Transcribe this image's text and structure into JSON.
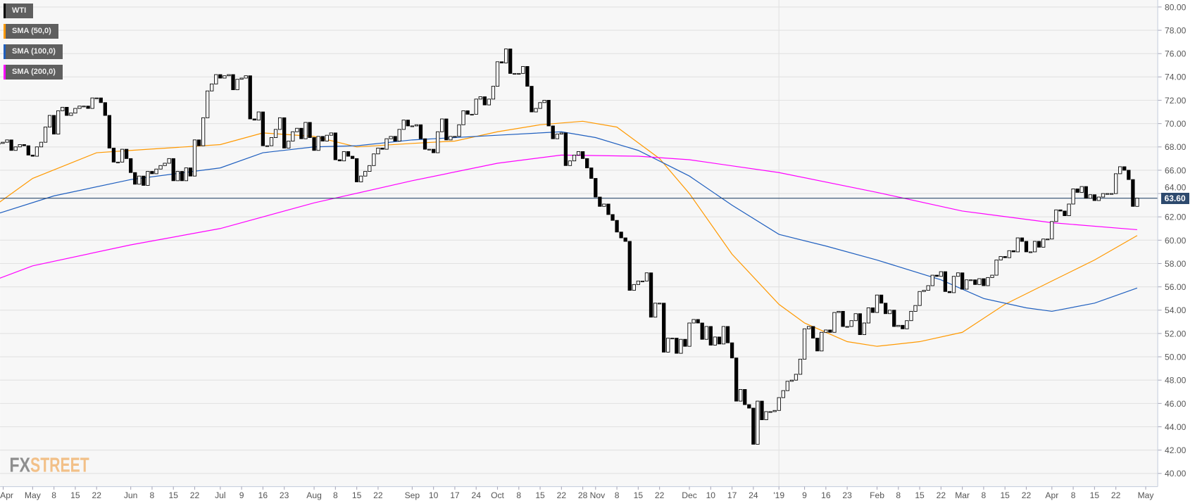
{
  "chart_data": {
    "type": "candlestick",
    "instrument": "WTI",
    "ylim": [
      40,
      80
    ],
    "y_ticks": [
      "80.00",
      "78.00",
      "76.00",
      "74.00",
      "72.00",
      "70.00",
      "68.00",
      "66.00",
      "64.00",
      "62.00",
      "60.00",
      "58.00",
      "56.00",
      "54.00",
      "52.00",
      "50.00",
      "48.00",
      "46.00",
      "44.00",
      "42.00",
      "40.00"
    ],
    "grid": true,
    "legend_placement": "top-left",
    "last_price": "63.60",
    "colors": {
      "up_body": "#ffffff",
      "down_body": "#000000",
      "sma50": "#ff9900",
      "sma100": "#1f5fbf",
      "sma200": "#ff00ff",
      "price_line": "#2e4a6e",
      "background": "#f7f7f7",
      "grid": "#e2e2e2"
    },
    "legend": [
      {
        "label": "WTI",
        "color": "#000000"
      },
      {
        "label": "SMA (50,0)",
        "color": "#ff9900"
      },
      {
        "label": "SMA (100,0)",
        "color": "#1f5fbf"
      },
      {
        "label": "SMA (200,0)",
        "color": "#ff00ff"
      }
    ],
    "x_ticks": [
      {
        "date": "2018-04-02",
        "label": "Apr"
      },
      {
        "date": "2018-05-01",
        "label": "May"
      },
      {
        "date": "2018-05-08",
        "label": "8"
      },
      {
        "date": "2018-05-15",
        "label": "15"
      },
      {
        "date": "2018-05-22",
        "label": "22"
      },
      {
        "date": "2018-06-01",
        "label": "Jun"
      },
      {
        "date": "2018-06-08",
        "label": "8"
      },
      {
        "date": "2018-06-15",
        "label": "15"
      },
      {
        "date": "2018-06-22",
        "label": "22"
      },
      {
        "date": "2018-07-02",
        "label": "Jul"
      },
      {
        "date": "2018-07-09",
        "label": "9"
      },
      {
        "date": "2018-07-16",
        "label": "16"
      },
      {
        "date": "2018-07-23",
        "label": "23"
      },
      {
        "date": "2018-08-01",
        "label": "Aug"
      },
      {
        "date": "2018-08-08",
        "label": "8"
      },
      {
        "date": "2018-08-15",
        "label": "15"
      },
      {
        "date": "2018-08-22",
        "label": "22"
      },
      {
        "date": "2018-09-03",
        "label": "Sep"
      },
      {
        "date": "2018-09-10",
        "label": "10"
      },
      {
        "date": "2018-09-17",
        "label": "17"
      },
      {
        "date": "2018-09-24",
        "label": "24"
      },
      {
        "date": "2018-10-01",
        "label": "Oct"
      },
      {
        "date": "2018-10-08",
        "label": "8"
      },
      {
        "date": "2018-10-15",
        "label": "15"
      },
      {
        "date": "2018-10-22",
        "label": "22"
      },
      {
        "date": "2018-10-29",
        "label": "28"
      },
      {
        "date": "2018-11-01",
        "label": "Nov"
      },
      {
        "date": "2018-11-08",
        "label": "8"
      },
      {
        "date": "2018-11-15",
        "label": "15"
      },
      {
        "date": "2018-11-22",
        "label": "22"
      },
      {
        "date": "2018-12-03",
        "label": "Dec"
      },
      {
        "date": "2018-12-10",
        "label": "10"
      },
      {
        "date": "2018-12-17",
        "label": "17"
      },
      {
        "date": "2018-12-24",
        "label": "24"
      },
      {
        "date": "2019-01-01",
        "label": "'19"
      },
      {
        "date": "2019-01-09",
        "label": "9"
      },
      {
        "date": "2019-01-16",
        "label": "16"
      },
      {
        "date": "2019-01-23",
        "label": "23"
      },
      {
        "date": "2019-02-01",
        "label": "Feb"
      },
      {
        "date": "2019-02-08",
        "label": "8"
      },
      {
        "date": "2019-02-15",
        "label": "15"
      },
      {
        "date": "2019-02-22",
        "label": "22"
      },
      {
        "date": "2019-03-01",
        "label": "Mar"
      },
      {
        "date": "2019-03-08",
        "label": "8"
      },
      {
        "date": "2019-03-15",
        "label": "15"
      },
      {
        "date": "2019-03-22",
        "label": "22"
      },
      {
        "date": "2019-04-01",
        "label": "Apr"
      },
      {
        "date": "2019-04-08",
        "label": "8"
      },
      {
        "date": "2019-04-15",
        "label": "15"
      },
      {
        "date": "2019-04-22",
        "label": "22"
      },
      {
        "date": "2019-05-01",
        "label": "May"
      }
    ],
    "weekly_closes": [
      {
        "week": "2018-04-16",
        "close": [
          null,
          null,
          null,
          68.3,
          68.4
        ]
      },
      {
        "week": "2018-04-23",
        "close": [
          68.6,
          67.7,
          68.0,
          68.2,
          68.1
        ]
      },
      {
        "week": "2018-04-30",
        "close": [
          67.3,
          67.2,
          68.0,
          68.4,
          69.7
        ]
      },
      {
        "week": "2018-05-07",
        "close": [
          70.7,
          69.1,
          71.1,
          71.4,
          70.7
        ]
      },
      {
        "week": "2018-05-14",
        "close": [
          70.9,
          71.3,
          71.5,
          71.5,
          71.3
        ]
      },
      {
        "week": "2018-05-21",
        "close": [
          72.2,
          72.2,
          71.8,
          70.7,
          67.9
        ]
      },
      {
        "week": "2018-05-28",
        "close": [
          66.7,
          66.7,
          67.8,
          67.0,
          65.8
        ]
      },
      {
        "week": "2018-06-04",
        "close": [
          64.8,
          65.5,
          64.7,
          65.9,
          65.7
        ]
      },
      {
        "week": "2018-06-11",
        "close": [
          66.1,
          66.4,
          66.6,
          67.0,
          65.1
        ]
      },
      {
        "week": "2018-06-18",
        "close": [
          65.9,
          65.1,
          66.2,
          65.5,
          68.6
        ]
      },
      {
        "week": "2018-06-25",
        "close": [
          68.1,
          70.5,
          72.8,
          73.4,
          74.2
        ]
      },
      {
        "week": "2018-07-02",
        "close": [
          73.9,
          74.1,
          74.2,
          72.9,
          73.8
        ]
      },
      {
        "week": "2018-07-09",
        "close": [
          73.9,
          74.1,
          70.4,
          70.3,
          71.0
        ]
      },
      {
        "week": "2018-07-16",
        "close": [
          68.1,
          68.1,
          68.8,
          69.5,
          70.5
        ]
      },
      {
        "week": "2018-07-23",
        "close": [
          67.9,
          68.5,
          69.3,
          69.6,
          68.7
        ]
      },
      {
        "week": "2018-07-30",
        "close": [
          70.1,
          68.8,
          67.7,
          68.9,
          68.5
        ]
      },
      {
        "week": "2018-08-06",
        "close": [
          69.0,
          69.2,
          66.9,
          66.8,
          67.6
        ]
      },
      {
        "week": "2018-08-13",
        "close": [
          67.2,
          67.0,
          65.0,
          65.5,
          65.9
        ]
      },
      {
        "week": "2018-08-20",
        "close": [
          66.4,
          67.4,
          67.9,
          67.8,
          68.7
        ]
      },
      {
        "week": "2018-08-27",
        "close": [
          68.9,
          68.5,
          69.5,
          70.3,
          69.8
        ]
      },
      {
        "week": "2018-09-03",
        "close": [
          69.8,
          69.9,
          68.7,
          67.8,
          67.8
        ]
      },
      {
        "week": "2018-09-10",
        "close": [
          67.5,
          69.3,
          70.4,
          68.6,
          68.9
        ]
      },
      {
        "week": "2018-09-17",
        "close": [
          68.9,
          69.9,
          71.1,
          70.8,
          70.8
        ]
      },
      {
        "week": "2018-09-24",
        "close": [
          72.1,
          72.3,
          71.6,
          72.1,
          73.2
        ]
      },
      {
        "week": "2018-10-01",
        "close": [
          75.3,
          75.2,
          76.4,
          74.3,
          74.3
        ]
      },
      {
        "week": "2018-10-08",
        "close": [
          74.3,
          74.9,
          73.2,
          71.0,
          71.3
        ]
      },
      {
        "week": "2018-10-15",
        "close": [
          71.8,
          72.0,
          69.8,
          68.7,
          69.1
        ]
      },
      {
        "week": "2018-10-22",
        "close": [
          69.2,
          66.4,
          66.8,
          67.3,
          67.6
        ]
      },
      {
        "week": "2018-10-29",
        "close": [
          67.0,
          66.2,
          65.3,
          63.7,
          62.9
        ]
      },
      {
        "week": "2018-11-05",
        "close": [
          63.1,
          62.2,
          61.7,
          60.7,
          60.2
        ]
      },
      {
        "week": "2018-11-12",
        "close": [
          59.9,
          55.7,
          56.2,
          56.5,
          56.5
        ]
      },
      {
        "week": "2018-11-19",
        "close": [
          57.2,
          53.4,
          54.6,
          54.6,
          50.4
        ]
      },
      {
        "week": "2018-11-26",
        "close": [
          51.6,
          51.6,
          50.3,
          51.5,
          50.9
        ]
      },
      {
        "week": "2018-12-03",
        "close": [
          52.9,
          53.2,
          52.9,
          51.5,
          52.6
        ]
      },
      {
        "week": "2018-12-10",
        "close": [
          51.0,
          51.7,
          51.1,
          52.6,
          51.2
        ]
      },
      {
        "week": "2018-12-17",
        "close": [
          49.9,
          46.2,
          47.2,
          45.9,
          45.6
        ]
      },
      {
        "week": "2018-12-24",
        "close": [
          42.5,
          46.2,
          44.6,
          45.3,
          45.3
        ]
      },
      {
        "week": "2018-12-31",
        "close": [
          45.4,
          46.5,
          47.1,
          47.9,
          48.0
        ]
      },
      {
        "week": "2019-01-07",
        "close": [
          48.5,
          49.8,
          52.4,
          52.6,
          51.6
        ]
      },
      {
        "week": "2019-01-14",
        "close": [
          50.5,
          52.1,
          52.3,
          52.1,
          53.8
        ]
      },
      {
        "week": "2019-01-21",
        "close": [
          53.9,
          52.6,
          52.6,
          53.1,
          53.7
        ]
      },
      {
        "week": "2019-01-28",
        "close": [
          51.9,
          52.9,
          54.2,
          53.8,
          55.3
        ]
      },
      {
        "week": "2019-02-04",
        "close": [
          54.6,
          53.7,
          54.0,
          52.6,
          52.7
        ]
      },
      {
        "week": "2019-02-11",
        "close": [
          52.4,
          53.1,
          53.9,
          54.4,
          55.6
        ]
      },
      {
        "week": "2019-02-18",
        "close": [
          55.7,
          56.1,
          57.0,
          56.9,
          57.3
        ]
      },
      {
        "week": "2019-02-25",
        "close": [
          55.6,
          55.5,
          56.9,
          57.2,
          55.8
        ]
      },
      {
        "week": "2019-03-04",
        "close": [
          56.6,
          56.6,
          56.2,
          56.7,
          56.1
        ]
      },
      {
        "week": "2019-03-11",
        "close": [
          56.8,
          57.0,
          58.3,
          58.6,
          58.5
        ]
      },
      {
        "week": "2019-03-18",
        "close": [
          59.1,
          59.0,
          60.2,
          59.9,
          59.0
        ]
      },
      {
        "week": "2019-03-25",
        "close": [
          59.0,
          59.9,
          59.4,
          60.1,
          60.1
        ]
      },
      {
        "week": "2019-04-01",
        "close": [
          61.6,
          62.6,
          62.5,
          62.1,
          63.1
        ]
      },
      {
        "week": "2019-04-08",
        "close": [
          64.4,
          64.1,
          64.6,
          63.6,
          63.9
        ]
      },
      {
        "week": "2019-04-15",
        "close": [
          63.4,
          63.7,
          64.0,
          64.0,
          64.0
        ]
      },
      {
        "week": "2019-04-22",
        "close": [
          65.7,
          66.3,
          66.0,
          65.2,
          62.9
        ]
      },
      {
        "week": "2019-04-29",
        "close": [
          63.6,
          null,
          null,
          null,
          null
        ]
      }
    ],
    "sma": [
      {
        "name": "SMA (50,0)",
        "color": "#ff9900",
        "points": [
          [
            "2018-04-19",
            63.2
          ],
          [
            "2018-05-01",
            65.3
          ],
          [
            "2018-05-22",
            67.5
          ],
          [
            "2018-06-01",
            67.7
          ],
          [
            "2018-07-02",
            68.2
          ],
          [
            "2018-07-16",
            69.2
          ],
          [
            "2018-08-01",
            68.9
          ],
          [
            "2018-08-15",
            68.0
          ],
          [
            "2018-09-03",
            68.3
          ],
          [
            "2018-09-17",
            68.5
          ],
          [
            "2018-10-01",
            69.3
          ],
          [
            "2018-10-15",
            69.9
          ],
          [
            "2018-10-29",
            70.2
          ],
          [
            "2018-11-08",
            69.7
          ],
          [
            "2018-11-22",
            67.0
          ],
          [
            "2018-12-03",
            64.0
          ],
          [
            "2018-12-17",
            58.8
          ],
          [
            "2019-01-01",
            54.5
          ],
          [
            "2019-01-09",
            52.9
          ],
          [
            "2019-01-23",
            51.3
          ],
          [
            "2019-02-01",
            50.9
          ],
          [
            "2019-02-15",
            51.3
          ],
          [
            "2019-03-01",
            52.1
          ],
          [
            "2019-03-15",
            54.5
          ],
          [
            "2019-04-01",
            56.5
          ],
          [
            "2019-04-15",
            58.3
          ],
          [
            "2019-04-29",
            60.4
          ]
        ]
      },
      {
        "name": "SMA (100,0)",
        "color": "#1f5fbf",
        "points": [
          [
            "2018-04-19",
            62.3
          ],
          [
            "2018-05-08",
            63.8
          ],
          [
            "2018-06-01",
            65.2
          ],
          [
            "2018-07-02",
            66.2
          ],
          [
            "2018-07-16",
            67.5
          ],
          [
            "2018-08-01",
            68.0
          ],
          [
            "2018-08-15",
            68.1
          ],
          [
            "2018-09-03",
            68.6
          ],
          [
            "2018-10-01",
            69.0
          ],
          [
            "2018-10-22",
            69.3
          ],
          [
            "2018-11-01",
            68.8
          ],
          [
            "2018-11-15",
            67.7
          ],
          [
            "2018-12-03",
            65.5
          ],
          [
            "2018-12-17",
            63.0
          ],
          [
            "2019-01-01",
            60.5
          ],
          [
            "2019-01-16",
            59.5
          ],
          [
            "2019-02-01",
            58.3
          ],
          [
            "2019-02-22",
            56.6
          ],
          [
            "2019-03-08",
            55.0
          ],
          [
            "2019-03-22",
            54.2
          ],
          [
            "2019-04-01",
            53.9
          ],
          [
            "2019-04-15",
            54.6
          ],
          [
            "2019-04-29",
            55.9
          ]
        ]
      },
      {
        "name": "SMA (200,0)",
        "color": "#ff00ff",
        "points": [
          [
            "2018-04-19",
            56.7
          ],
          [
            "2018-05-01",
            57.8
          ],
          [
            "2018-06-01",
            59.6
          ],
          [
            "2018-07-02",
            61.0
          ],
          [
            "2018-08-01",
            63.2
          ],
          [
            "2018-09-03",
            65.1
          ],
          [
            "2018-10-01",
            66.6
          ],
          [
            "2018-10-22",
            67.3
          ],
          [
            "2018-11-15",
            67.2
          ],
          [
            "2018-12-03",
            66.9
          ],
          [
            "2019-01-01",
            65.8
          ],
          [
            "2019-02-01",
            64.1
          ],
          [
            "2019-03-01",
            62.5
          ],
          [
            "2019-04-01",
            61.5
          ],
          [
            "2019-04-29",
            60.9
          ]
        ]
      }
    ]
  },
  "branding": {
    "logo_text_a": "FX",
    "logo_text_b": "STREET"
  }
}
